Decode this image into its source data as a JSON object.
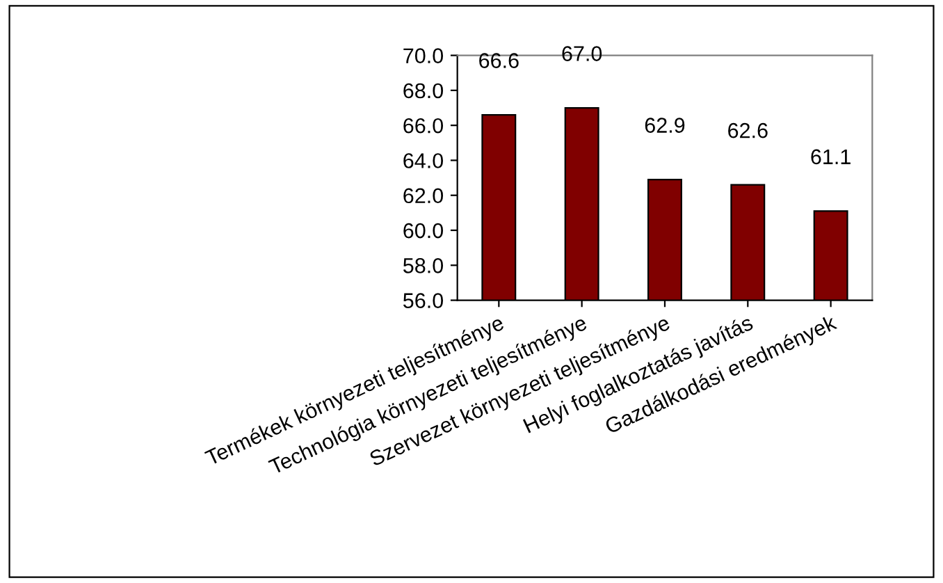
{
  "chart_data": {
    "type": "bar",
    "categories": [
      "Termékek környezeti teljesítménye",
      "Technológia környezeti teljesítménye",
      "Szervezet környezeti teljesítménye",
      "Helyi foglalkoztatás javítás",
      "Gazdálkodási eredmények"
    ],
    "values": [
      66.6,
      67.0,
      62.9,
      62.6,
      61.1
    ],
    "value_labels": [
      "66.6",
      "67.0",
      "62.9",
      "62.6",
      "61.1"
    ],
    "color": "#800000",
    "ylim": [
      56.0,
      70.0
    ],
    "yticks": [
      {
        "value": 56,
        "label": "56.0"
      },
      {
        "value": 58,
        "label": "58.0"
      },
      {
        "value": 60,
        "label": "60.0"
      },
      {
        "value": 62,
        "label": "62.0"
      },
      {
        "value": 64,
        "label": "64.0"
      },
      {
        "value": 66,
        "label": "66.0"
      },
      {
        "value": 68,
        "label": "68.0"
      },
      {
        "value": 70,
        "label": "70.0"
      }
    ],
    "grid": false,
    "legend": false
  }
}
